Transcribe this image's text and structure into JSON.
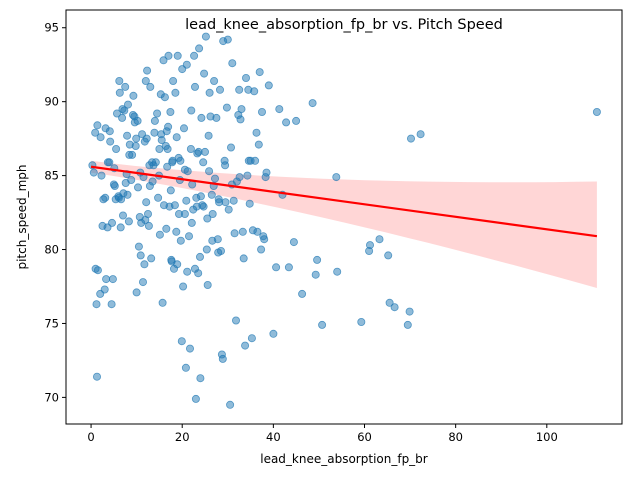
{
  "chart_data": {
    "type": "scatter",
    "title": "lead_knee_absorption_fp_br vs. Pitch Speed",
    "xlabel": "lead_knee_absorption_fp_br",
    "ylabel": "pitch_speed_mph",
    "xlim": [
      -5.5,
      116.5
    ],
    "ylim": [
      68.2,
      96.2
    ],
    "xticks": [
      0,
      20,
      40,
      60,
      80,
      100
    ],
    "yticks": [
      70,
      75,
      80,
      85,
      90,
      95
    ],
    "grid": false,
    "legend": "none",
    "colors": {
      "points": "#1f77b4",
      "regression": "#ff0000",
      "confidence_band": "#ff9999"
    },
    "regression": {
      "x": [
        0,
        111
      ],
      "y": [
        85.6,
        80.9
      ],
      "band_upper": [
        86.0,
        84.6
      ],
      "band_lower": [
        85.2,
        77.4
      ]
    },
    "points": [
      [
        0.3,
        85.7
      ],
      [
        0.6,
        85.2
      ],
      [
        1.0,
        78.7
      ],
      [
        1.2,
        76.3
      ],
      [
        1.3,
        71.4
      ],
      [
        1.5,
        78.6
      ],
      [
        2.0,
        77.0
      ],
      [
        2.3,
        85.0
      ],
      [
        2.5,
        81.6
      ],
      [
        2.7,
        83.4
      ],
      [
        3.0,
        77.3
      ],
      [
        3.1,
        83.5
      ],
      [
        3.3,
        78.0
      ],
      [
        3.6,
        81.5
      ],
      [
        3.7,
        85.9
      ],
      [
        4.0,
        85.9
      ],
      [
        4.2,
        87.3
      ],
      [
        4.5,
        76.3
      ],
      [
        4.6,
        81.8
      ],
      [
        4.8,
        78.0
      ],
      [
        5.0,
        84.4
      ],
      [
        5.2,
        84.3
      ],
      [
        5.4,
        83.4
      ],
      [
        5.7,
        89.2
      ],
      [
        6.0,
        83.6
      ],
      [
        6.2,
        91.4
      ],
      [
        6.3,
        90.6
      ],
      [
        6.5,
        81.5
      ],
      [
        6.6,
        83.4
      ],
      [
        6.8,
        88.9
      ],
      [
        7.0,
        82.3
      ],
      [
        7.1,
        83.8
      ],
      [
        7.3,
        89.4
      ],
      [
        7.5,
        91.0
      ],
      [
        7.6,
        84.5
      ],
      [
        7.8,
        85.1
      ],
      [
        8.0,
        83.7
      ],
      [
        8.1,
        89.8
      ],
      [
        8.3,
        81.9
      ],
      [
        8.5,
        87.1
      ],
      [
        8.8,
        84.7
      ],
      [
        9.0,
        86.4
      ],
      [
        9.3,
        90.4
      ],
      [
        9.5,
        89.0
      ],
      [
        9.6,
        88.6
      ],
      [
        9.8,
        87.0
      ],
      [
        10.0,
        77.1
      ],
      [
        10.2,
        88.7
      ],
      [
        10.3,
        84.2
      ],
      [
        10.5,
        80.2
      ],
      [
        10.7,
        82.2
      ],
      [
        10.9,
        79.6
      ],
      [
        11.0,
        81.8
      ],
      [
        11.2,
        87.8
      ],
      [
        11.4,
        77.8
      ],
      [
        11.5,
        84.9
      ],
      [
        11.7,
        79.0
      ],
      [
        11.9,
        82.0
      ],
      [
        12.0,
        91.4
      ],
      [
        12.2,
        87.5
      ],
      [
        12.3,
        92.1
      ],
      [
        12.5,
        82.4
      ],
      [
        12.7,
        81.6
      ],
      [
        12.9,
        84.3
      ],
      [
        13.0,
        91.0
      ],
      [
        13.2,
        79.4
      ],
      [
        13.5,
        84.6
      ],
      [
        13.7,
        85.7
      ],
      [
        14.0,
        88.7
      ],
      [
        14.2,
        85.9
      ],
      [
        14.5,
        89.2
      ],
      [
        14.7,
        83.5
      ],
      [
        15.0,
        86.8
      ],
      [
        15.1,
        81.0
      ],
      [
        15.3,
        90.5
      ],
      [
        15.5,
        87.4
      ],
      [
        15.7,
        76.4
      ],
      [
        15.9,
        92.8
      ],
      [
        16.0,
        83.0
      ],
      [
        16.2,
        90.3
      ],
      [
        16.4,
        87.0
      ],
      [
        16.5,
        81.4
      ],
      [
        16.7,
        85.6
      ],
      [
        16.9,
        88.3
      ],
      [
        17.0,
        93.1
      ],
      [
        17.2,
        82.9
      ],
      [
        17.4,
        89.3
      ],
      [
        17.5,
        84.0
      ],
      [
        17.7,
        79.2
      ],
      [
        17.9,
        86.0
      ],
      [
        18.0,
        91.4
      ],
      [
        18.2,
        78.7
      ],
      [
        18.5,
        90.6
      ],
      [
        18.7,
        81.2
      ],
      [
        19.0,
        93.1
      ],
      [
        19.2,
        86.2
      ],
      [
        19.5,
        84.7
      ],
      [
        19.7,
        80.6
      ],
      [
        19.9,
        73.8
      ],
      [
        20.0,
        92.2
      ],
      [
        20.2,
        77.5
      ],
      [
        20.4,
        88.2
      ],
      [
        20.6,
        82.4
      ],
      [
        20.8,
        72.0
      ],
      [
        21.0,
        92.5
      ],
      [
        21.2,
        85.3
      ],
      [
        21.5,
        80.9
      ],
      [
        21.7,
        73.3
      ],
      [
        22.0,
        89.4
      ],
      [
        22.2,
        84.4
      ],
      [
        22.4,
        82.7
      ],
      [
        22.6,
        93.1
      ],
      [
        22.8,
        91.0
      ],
      [
        23.0,
        69.9
      ],
      [
        23.1,
        83.5
      ],
      [
        23.3,
        86.5
      ],
      [
        23.5,
        78.4
      ],
      [
        23.7,
        93.6
      ],
      [
        23.9,
        79.5
      ],
      [
        24.0,
        71.3
      ],
      [
        24.2,
        88.9
      ],
      [
        24.4,
        83.0
      ],
      [
        24.6,
        85.9
      ],
      [
        24.8,
        91.9
      ],
      [
        25.0,
        86.6
      ],
      [
        25.2,
        94.4
      ],
      [
        25.4,
        80.0
      ],
      [
        25.6,
        77.6
      ],
      [
        25.8,
        87.7
      ],
      [
        26.0,
        90.6
      ],
      [
        26.2,
        89.0
      ],
      [
        26.5,
        83.7
      ],
      [
        26.7,
        82.4
      ],
      [
        27.0,
        91.4
      ],
      [
        27.2,
        84.8
      ],
      [
        27.5,
        88.9
      ],
      [
        27.8,
        80.7
      ],
      [
        28.0,
        83.4
      ],
      [
        28.3,
        90.8
      ],
      [
        28.5,
        79.9
      ],
      [
        28.7,
        72.9
      ],
      [
        28.9,
        72.6
      ],
      [
        29.0,
        94.1
      ],
      [
        29.3,
        86.0
      ],
      [
        29.5,
        83.2
      ],
      [
        29.8,
        89.6
      ],
      [
        30.0,
        94.2
      ],
      [
        30.2,
        82.7
      ],
      [
        30.5,
        69.5
      ],
      [
        30.7,
        86.9
      ],
      [
        31.0,
        92.6
      ],
      [
        31.3,
        83.3
      ],
      [
        31.5,
        81.1
      ],
      [
        31.8,
        75.2
      ],
      [
        32.0,
        84.6
      ],
      [
        32.3,
        89.1
      ],
      [
        32.5,
        90.8
      ],
      [
        32.8,
        88.8
      ],
      [
        33.0,
        89.5
      ],
      [
        33.3,
        81.2
      ],
      [
        33.5,
        79.4
      ],
      [
        33.8,
        73.5
      ],
      [
        34.0,
        91.6
      ],
      [
        34.3,
        85.0
      ],
      [
        34.5,
        90.8
      ],
      [
        34.8,
        83.1
      ],
      [
        35.0,
        86.0
      ],
      [
        35.3,
        74.0
      ],
      [
        35.5,
        81.3
      ],
      [
        35.8,
        90.7
      ],
      [
        36.0,
        86.0
      ],
      [
        36.3,
        87.9
      ],
      [
        36.5,
        81.2
      ],
      [
        36.8,
        87.1
      ],
      [
        37.0,
        92.0
      ],
      [
        37.3,
        80.0
      ],
      [
        37.5,
        89.3
      ],
      [
        37.8,
        80.9
      ],
      [
        38.0,
        80.7
      ],
      [
        38.3,
        84.9
      ],
      [
        38.5,
        85.2
      ],
      [
        39.0,
        91.1
      ],
      [
        40.0,
        74.3
      ],
      [
        40.6,
        78.8
      ],
      [
        41.3,
        89.5
      ],
      [
        42.0,
        83.7
      ],
      [
        42.8,
        88.6
      ],
      [
        43.4,
        78.8
      ],
      [
        44.5,
        80.5
      ],
      [
        45.0,
        88.7
      ],
      [
        46.3,
        77.0
      ],
      [
        48.6,
        89.9
      ],
      [
        49.3,
        78.3
      ],
      [
        49.6,
        79.3
      ],
      [
        50.7,
        74.9
      ],
      [
        53.8,
        84.9
      ],
      [
        54.0,
        78.5
      ],
      [
        59.3,
        75.1
      ],
      [
        61.0,
        79.9
      ],
      [
        61.2,
        80.3
      ],
      [
        63.3,
        80.7
      ],
      [
        65.2,
        79.6
      ],
      [
        65.5,
        76.4
      ],
      [
        66.6,
        76.1
      ],
      [
        69.5,
        74.9
      ],
      [
        69.9,
        75.8
      ],
      [
        70.2,
        87.5
      ],
      [
        72.3,
        87.8
      ],
      [
        111.0,
        89.3
      ],
      [
        0.9,
        87.9
      ],
      [
        1.4,
        88.4
      ],
      [
        2.1,
        87.6
      ],
      [
        3.2,
        88.2
      ],
      [
        4.1,
        88.0
      ],
      [
        5.5,
        86.8
      ],
      [
        6.9,
        89.5
      ],
      [
        8.4,
        86.4
      ],
      [
        9.9,
        87.5
      ],
      [
        11.8,
        87.3
      ],
      [
        12.8,
        85.7
      ],
      [
        13.9,
        87.9
      ],
      [
        14.9,
        85.0
      ],
      [
        16.6,
        88.0
      ],
      [
        17.8,
        85.9
      ],
      [
        18.8,
        87.6
      ],
      [
        19.6,
        86.0
      ],
      [
        20.6,
        85.4
      ],
      [
        21.9,
        86.8
      ],
      [
        23.6,
        86.6
      ],
      [
        24.7,
        82.9
      ],
      [
        25.9,
        85.3
      ],
      [
        26.9,
        84.3
      ],
      [
        28.1,
        83.2
      ],
      [
        29.4,
        85.7
      ],
      [
        30.9,
        84.4
      ],
      [
        32.6,
        84.9
      ],
      [
        34.6,
        86.0
      ],
      [
        9.2,
        89.1
      ],
      [
        7.9,
        87.7
      ],
      [
        6.1,
        83.5
      ],
      [
        5.1,
        85.5
      ],
      [
        10.8,
        85.2
      ],
      [
        12.1,
        83.2
      ],
      [
        13.4,
        85.9
      ],
      [
        15.4,
        87.8
      ],
      [
        16.8,
        86.8
      ],
      [
        18.4,
        83.0
      ],
      [
        19.3,
        82.4
      ],
      [
        20.9,
        83.3
      ],
      [
        22.1,
        81.8
      ],
      [
        23.2,
        82.9
      ],
      [
        24.1,
        83.6
      ],
      [
        25.5,
        82.1
      ],
      [
        26.6,
        80.6
      ],
      [
        27.9,
        79.8
      ],
      [
        22.8,
        78.7
      ],
      [
        17.6,
        79.3
      ],
      [
        18.9,
        79.0
      ],
      [
        21.1,
        78.5
      ]
    ]
  }
}
